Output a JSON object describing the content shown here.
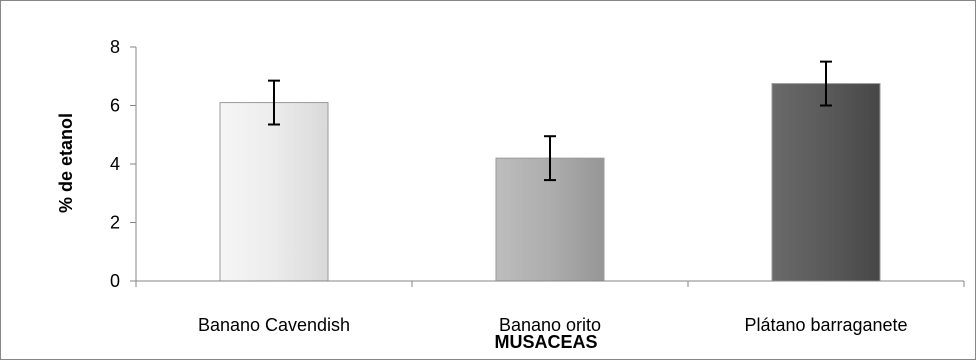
{
  "chart_data": {
    "type": "bar",
    "title": "",
    "xlabel": "MUSACEAS",
    "ylabel": "% de etanol",
    "categories": [
      "Banano Cavendish",
      "Banano orito",
      "Plátano barraganete"
    ],
    "series": [
      {
        "values": [
          6.1,
          4.2,
          6.75
        ],
        "error": [
          0.75,
          0.75,
          0.75
        ],
        "colors": [
          "#eaeaea",
          "#acacac",
          "#595959"
        ]
      }
    ],
    "ylim": [
      0,
      8
    ],
    "yticks": [
      "0",
      "2",
      "4",
      "6",
      "8"
    ],
    "grid": false,
    "legend": "none"
  }
}
